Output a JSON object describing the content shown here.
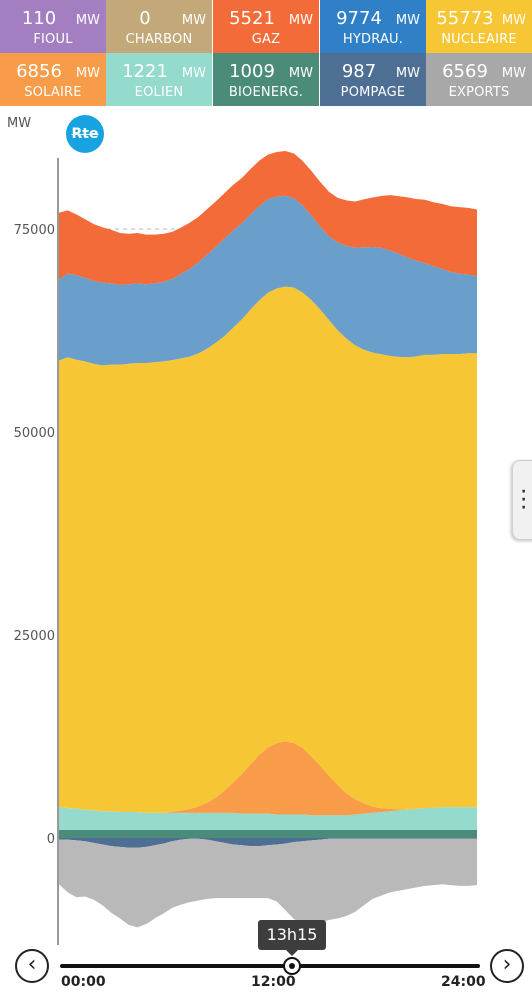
{
  "tiles": [
    {
      "value": "110",
      "unit": "MW",
      "name": "FIOUL",
      "color": "#a37fc1"
    },
    {
      "value": "0",
      "unit": "MW",
      "name": "CHARBON",
      "color": "#c3a97a"
    },
    {
      "value": "5521",
      "unit": "MW",
      "name": "GAZ",
      "color": "#f26b38"
    },
    {
      "value": "9774",
      "unit": "MW",
      "name": "HYDRAU.",
      "color": "#2f80c7"
    },
    {
      "value": "55773",
      "unit": "MW",
      "name": "NUCLEAIRE",
      "color": "#f7c634"
    },
    {
      "value": "6856",
      "unit": "MW",
      "name": "SOLAIRE",
      "color": "#f89c4a"
    },
    {
      "value": "1221",
      "unit": "MW",
      "name": "EOLIEN",
      "color": "#95dbcd"
    },
    {
      "value": "1009",
      "unit": "MW",
      "name": "BIOENERG.",
      "color": "#4b8b7a"
    },
    {
      "value": "987",
      "unit": "MW",
      "name": "POMPAGE",
      "color": "#4e6f94"
    },
    {
      "value": "6569",
      "unit": "MW",
      "name": "EXPORTS",
      "color": "#a8a8a8"
    }
  ],
  "header": {
    "unit_label": "MW",
    "logo_text": "Rte"
  },
  "slider": {
    "current_time": "13h15",
    "current_fraction": 0.552,
    "labels": [
      "00:00",
      "12:00",
      "24:00"
    ],
    "prev_icon": "chevron-left-icon",
    "next_icon": "chevron-right-icon"
  },
  "chart_data": {
    "type": "area",
    "stacked": true,
    "ylim": [
      -11000,
      84000
    ],
    "yticks": [
      0,
      25000,
      50000,
      75000
    ],
    "xlim": [
      0,
      24
    ],
    "grid": "horizontal-dashed",
    "x": [
      0,
      0.5,
      1,
      1.5,
      2,
      2.5,
      3,
      3.5,
      4,
      4.5,
      5,
      5.5,
      6,
      6.5,
      7,
      7.5,
      8,
      8.5,
      9,
      9.5,
      10,
      10.5,
      11,
      11.5,
      12,
      12.5,
      13,
      13.5,
      14,
      14.5,
      15,
      15.5,
      16,
      16.5,
      17,
      17.5,
      18,
      18.5,
      19,
      19.5,
      20,
      20.5,
      21,
      21.5,
      22,
      22.5,
      23,
      23.5,
      24
    ],
    "series": [
      {
        "name": "EOLIEN",
        "color": "#95dbcd",
        "values": [
          2800,
          2700,
          2600,
          2500,
          2400,
          2300,
          2300,
          2200,
          2200,
          2200,
          2100,
          2100,
          2100,
          2100,
          2100,
          2100,
          2100,
          2100,
          2100,
          2100,
          2100,
          2000,
          2000,
          2000,
          2000,
          1900,
          1900,
          1900,
          1900,
          1800,
          1800,
          1800,
          1800,
          1800,
          1900,
          2000,
          2100,
          2200,
          2300,
          2400,
          2500,
          2600,
          2700,
          2700,
          2800,
          2800,
          2800,
          2800,
          2800
        ]
      },
      {
        "name": "SOLAIRE",
        "color": "#f89c4a",
        "values": [
          0,
          0,
          0,
          0,
          0,
          0,
          0,
          0,
          0,
          0,
          0,
          0,
          0,
          0,
          0,
          0,
          0,
          0,
          0,
          0,
          0,
          0,
          0,
          0,
          0,
          0,
          0,
          0,
          0,
          0,
          0,
          0,
          0,
          0,
          0,
          0,
          0,
          0,
          0,
          0,
          0,
          0,
          0,
          0,
          0,
          0,
          0,
          0,
          0
        ]
      },
      {
        "name": "NUCLEAIRE",
        "color": "#f7c634",
        "values": [
          55000,
          55500,
          55300,
          55200,
          55000,
          54900,
          55000,
          55100,
          55200,
          55300,
          55400,
          55500,
          55600,
          55600,
          55700,
          55700,
          55800,
          55900,
          56000,
          56000,
          56000,
          56000,
          56000,
          56000,
          56000,
          56000,
          56000,
          56100,
          56100,
          56200,
          56200,
          56100,
          56000,
          56000,
          55900,
          55900,
          55900,
          55900,
          55800,
          55700,
          55700,
          55700,
          55800,
          55800,
          55800,
          55800,
          55800,
          55900,
          55900
        ]
      },
      {
        "name": "HYDRAU.",
        "color": "#6a9ecb",
        "values": [
          10000,
          10300,
          10400,
          10300,
          10200,
          10200,
          10000,
          9800,
          9800,
          9800,
          9700,
          9700,
          9800,
          10000,
          10400,
          10800,
          11200,
          11600,
          11800,
          12000,
          12000,
          11800,
          11700,
          11600,
          11500,
          11300,
          11200,
          11000,
          10700,
          10400,
          10200,
          10300,
          10800,
          11400,
          12000,
          12600,
          13000,
          13100,
          13000,
          12700,
          12300,
          11800,
          11300,
          10900,
          10500,
          10100,
          9900,
          9700,
          9500
        ]
      },
      {
        "name": "GAZ",
        "color": "#f26b38",
        "values": [
          8200,
          7800,
          7500,
          7200,
          7000,
          6800,
          6600,
          6400,
          6200,
          6200,
          6100,
          6000,
          5900,
          5800,
          5700,
          5700,
          5600,
          5600,
          5600,
          5600,
          5600,
          5600,
          5600,
          5600,
          5500,
          5500,
          5500,
          5500,
          5500,
          5500,
          5500,
          5500,
          5500,
          5600,
          5700,
          5900,
          6100,
          6400,
          6800,
          7100,
          7400,
          7600,
          7800,
          7900,
          8000,
          8100,
          8200,
          8200,
          8200
        ]
      },
      {
        "name": "BIOENERG.",
        "color": "#4b8b7a",
        "values": [
          1000,
          1000,
          1000,
          1000,
          1000,
          1000,
          1000,
          1000,
          1000,
          1000,
          1000,
          1000,
          1000,
          1000,
          1000,
          1000,
          1000,
          1000,
          1000,
          1000,
          1000,
          1000,
          1000,
          1000,
          1000,
          1000,
          1000,
          1000,
          1000,
          1000,
          1000,
          1000,
          1000,
          1000,
          1000,
          1000,
          1000,
          1000,
          1000,
          1000,
          1000,
          1000,
          1000,
          1000,
          1000,
          1000,
          1000,
          1000,
          1000
        ]
      },
      {
        "name": "POMPAGE",
        "color": "#4e6f94",
        "values": [
          -200,
          -200,
          -300,
          -400,
          -600,
          -800,
          -1000,
          -1100,
          -1200,
          -1200,
          -1100,
          -900,
          -700,
          -400,
          -200,
          -100,
          -100,
          -200,
          -400,
          -600,
          -800,
          -900,
          -1000,
          -1000,
          -900,
          -800,
          -700,
          -500,
          -400,
          -300,
          -200,
          -100,
          -100,
          -100,
          -100,
          -100,
          -100,
          -100,
          -100,
          -100,
          -100,
          -100,
          -100,
          -100,
          -100,
          -100,
          -100,
          -100,
          -100
        ]
      },
      {
        "name": "EXPORTS",
        "color": "#b9b9b9",
        "values": [
          -5500,
          -6500,
          -7000,
          -6800,
          -7000,
          -7500,
          -8200,
          -8800,
          -9500,
          -9800,
          -9500,
          -9000,
          -8600,
          -8200,
          -8000,
          -7800,
          -7600,
          -7300,
          -7000,
          -6800,
          -6600,
          -6500,
          -6400,
          -6400,
          -6500,
          -7000,
          -8200,
          -9500,
          -10000,
          -10300,
          -10200,
          -10000,
          -9800,
          -9500,
          -9000,
          -8200,
          -7400,
          -7000,
          -6600,
          -6400,
          -6200,
          -6000,
          -5800,
          -5700,
          -5600,
          -5700,
          -5800,
          -5800,
          -5700
        ]
      }
    ]
  }
}
